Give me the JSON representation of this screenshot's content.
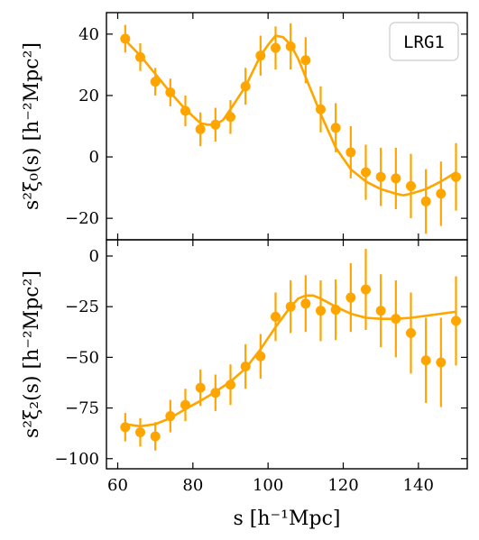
{
  "colors": {
    "series": "#FFA500",
    "axes": "#000000"
  },
  "chart_data": [
    {
      "type": "scatter",
      "panel": "top",
      "ylabel": "s²ξ₀(s) [h⁻²Mpc²]",
      "ylim": [
        -27,
        47
      ],
      "xlim": [
        57,
        153
      ],
      "yticks": [
        {
          "value": -20,
          "label": "−20"
        },
        {
          "value": 0,
          "label": "0"
        },
        {
          "value": 20,
          "label": "20"
        },
        {
          "value": 40,
          "label": "40"
        }
      ],
      "legend": {
        "label": "LRG1",
        "position": "top-right"
      },
      "grid": false,
      "series": [
        {
          "kind": "points",
          "x": [
            62,
            66,
            70,
            74,
            78,
            82,
            86,
            90,
            94,
            98,
            102,
            106,
            110,
            114,
            118,
            122,
            126,
            130,
            134,
            138,
            142,
            146,
            150
          ],
          "y": [
            38.5,
            32.5,
            24.5,
            21,
            15,
            9,
            10.5,
            13,
            23,
            33,
            35.5,
            36,
            31.5,
            15.5,
            9.5,
            1.5,
            -5,
            -6.5,
            -7,
            -9.5,
            -14.5,
            -12,
            -6.5
          ],
          "err": [
            4.5,
            4.5,
            4.5,
            4.5,
            5,
            5.5,
            5.5,
            5.5,
            6,
            6.5,
            7,
            7.5,
            7.5,
            7.5,
            8,
            8.5,
            9,
            9.5,
            10,
            10.5,
            10.5,
            10.5,
            11
          ]
        },
        {
          "kind": "line",
          "x": [
            62,
            66,
            70,
            74,
            78,
            82,
            84,
            86,
            88,
            90,
            94,
            98,
            100,
            102,
            104,
            106,
            108,
            110,
            114,
            118,
            122,
            126,
            130,
            134,
            136,
            138,
            142,
            146,
            150
          ],
          "y": [
            38,
            33,
            27,
            21,
            15.5,
            11,
            10.5,
            10.5,
            12,
            15.5,
            23,
            33,
            36.5,
            39.5,
            39,
            36.5,
            32,
            26,
            14,
            3,
            -4,
            -8,
            -10.5,
            -12,
            -12.5,
            -12,
            -10.5,
            -8,
            -5
          ]
        }
      ]
    },
    {
      "type": "scatter",
      "panel": "bottom",
      "xlabel": "s [h⁻¹Mpc]",
      "ylabel": "s²ξ₂(s) [h⁻²Mpc²]",
      "ylim": [
        -105,
        8
      ],
      "xlim": [
        57,
        153
      ],
      "yticks": [
        {
          "value": -100,
          "label": "−100"
        },
        {
          "value": -75,
          "label": "−75"
        },
        {
          "value": -50,
          "label": "−50"
        },
        {
          "value": -25,
          "label": "−25"
        },
        {
          "value": 0,
          "label": "0"
        }
      ],
      "xticks": [
        {
          "value": 60,
          "label": "60"
        },
        {
          "value": 80,
          "label": "80"
        },
        {
          "value": 100,
          "label": "100"
        },
        {
          "value": 120,
          "label": "120"
        },
        {
          "value": 140,
          "label": "140"
        }
      ],
      "grid": false,
      "series": [
        {
          "kind": "points",
          "x": [
            62,
            66,
            70,
            74,
            78,
            82,
            86,
            90,
            94,
            98,
            102,
            106,
            110,
            114,
            118,
            122,
            126,
            130,
            134,
            138,
            142,
            146,
            150
          ],
          "y": [
            -84.5,
            -87,
            -89,
            -79,
            -73.5,
            -65,
            -67.5,
            -63.5,
            -54.5,
            -49.5,
            -30,
            -25,
            -23.5,
            -27,
            -26.5,
            -20.5,
            -16.5,
            -27,
            -31,
            -38,
            -51.5,
            -52.5,
            -32
          ],
          "err": [
            7,
            7,
            7,
            8,
            8,
            9,
            9,
            10,
            11,
            11,
            12,
            13,
            14,
            15,
            15,
            17,
            20,
            18,
            19,
            20,
            21,
            22,
            22
          ]
        },
        {
          "kind": "line",
          "x": [
            62,
            66,
            70,
            74,
            78,
            82,
            86,
            90,
            94,
            98,
            102,
            106,
            108,
            110,
            112,
            114,
            118,
            122,
            126,
            130,
            134,
            138,
            142,
            146,
            150
          ],
          "y": [
            -83,
            -84,
            -83,
            -80,
            -75.5,
            -71.5,
            -67,
            -62,
            -55.5,
            -46,
            -35,
            -25,
            -21,
            -19.5,
            -19.5,
            -21,
            -25,
            -28.5,
            -30.5,
            -31,
            -31,
            -30.5,
            -29.5,
            -28.5,
            -27.5
          ]
        }
      ]
    }
  ]
}
